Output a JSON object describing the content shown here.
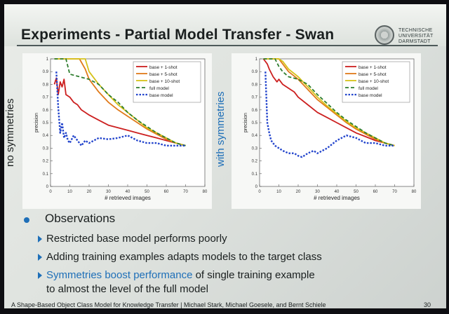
{
  "slide": {
    "title": "Experiments - Partial Model Transfer - Swan",
    "logo_lines": [
      "TECHNISCHE",
      "UNIVERSITÄT",
      "DARMSTADT"
    ],
    "footer": "A Shape-Based Object Class Model for Knowledge Transfer | Michael Stark, Michael Goesele, and Bernt Schiele",
    "page_number": "30"
  },
  "plots": {
    "left_label": "no symmetries",
    "right_label": "with symmetries"
  },
  "bullets": {
    "heading": "Observations",
    "items": [
      {
        "text": "Restricted base model performs poorly"
      },
      {
        "text": "Adding training examples adapts models to the target class"
      },
      {
        "highlight": "Symmetries boost performance",
        "text": " of single training example",
        "text2": "to almost the level of the full model"
      }
    ]
  },
  "chart_data": [
    {
      "type": "line",
      "title": "",
      "xlabel": "# retrieved images",
      "ylabel": "precision",
      "xlim": [
        0,
        80
      ],
      "ylim": [
        0,
        1
      ],
      "xticks": [
        0,
        10,
        20,
        30,
        40,
        50,
        60,
        70,
        80
      ],
      "yticks": [
        0,
        0.1,
        0.2,
        0.3,
        0.4,
        0.5,
        0.6,
        0.7,
        0.8,
        0.9,
        1
      ],
      "legend_position": "top-right",
      "series": [
        {
          "name": "base + 1-shot",
          "color": "#cc1f1f",
          "dash": "solid",
          "x": [
            2,
            3,
            4,
            5,
            6,
            7,
            8,
            10,
            12,
            14,
            16,
            18,
            20,
            25,
            30,
            35,
            40,
            45,
            50,
            55,
            60,
            65,
            70
          ],
          "y": [
            0.8,
            0.85,
            0.72,
            0.82,
            0.78,
            0.84,
            0.72,
            0.7,
            0.66,
            0.64,
            0.6,
            0.58,
            0.56,
            0.52,
            0.48,
            0.46,
            0.44,
            0.42,
            0.4,
            0.38,
            0.36,
            0.34,
            0.32
          ]
        },
        {
          "name": "base + 5-shot",
          "color": "#e07a1a",
          "dash": "solid",
          "x": [
            2,
            5,
            10,
            15,
            18,
            20,
            25,
            30,
            35,
            40,
            45,
            50,
            55,
            60,
            65,
            70
          ],
          "y": [
            1,
            1,
            1,
            1,
            0.92,
            0.84,
            0.74,
            0.66,
            0.6,
            0.55,
            0.5,
            0.45,
            0.41,
            0.37,
            0.34,
            0.32
          ]
        },
        {
          "name": "base + 10-shot",
          "color": "#d6c21a",
          "dash": "solid",
          "x": [
            2,
            5,
            10,
            15,
            18,
            20,
            25,
            30,
            35,
            40,
            45,
            50,
            55,
            60,
            65,
            70
          ],
          "y": [
            1,
            1,
            1,
            1,
            1,
            0.9,
            0.8,
            0.72,
            0.64,
            0.58,
            0.52,
            0.46,
            0.42,
            0.38,
            0.34,
            0.32
          ]
        },
        {
          "name": "full model",
          "color": "#2e7d2e",
          "dash": "dashed",
          "x": [
            2,
            5,
            8,
            10,
            15,
            20,
            25,
            30,
            35,
            40,
            45,
            50,
            55,
            60,
            65,
            70
          ],
          "y": [
            1,
            1,
            1,
            0.88,
            0.86,
            0.84,
            0.8,
            0.72,
            0.66,
            0.58,
            0.52,
            0.47,
            0.42,
            0.38,
            0.34,
            0.32
          ]
        },
        {
          "name": "base model",
          "color": "#2244cc",
          "dash": "dotted",
          "x": [
            3,
            4,
            5,
            6,
            7,
            8,
            9,
            10,
            12,
            14,
            16,
            18,
            20,
            25,
            30,
            35,
            40,
            45,
            50,
            55,
            60,
            65,
            70
          ],
          "y": [
            0.9,
            0.62,
            0.42,
            0.5,
            0.38,
            0.42,
            0.36,
            0.34,
            0.4,
            0.36,
            0.32,
            0.36,
            0.34,
            0.38,
            0.37,
            0.38,
            0.4,
            0.36,
            0.34,
            0.34,
            0.32,
            0.32,
            0.32
          ]
        }
      ]
    },
    {
      "type": "line",
      "title": "",
      "xlabel": "# retrieved images",
      "ylabel": "precision",
      "xlim": [
        0,
        80
      ],
      "ylim": [
        0,
        1
      ],
      "xticks": [
        0,
        10,
        20,
        30,
        40,
        50,
        60,
        70,
        80
      ],
      "yticks": [
        0,
        0.1,
        0.2,
        0.3,
        0.4,
        0.5,
        0.6,
        0.7,
        0.8,
        0.9,
        1
      ],
      "legend_position": "top-right",
      "series": [
        {
          "name": "base + 1-shot",
          "color": "#cc1f1f",
          "dash": "solid",
          "x": [
            2,
            4,
            5,
            7,
            9,
            10,
            12,
            15,
            18,
            20,
            25,
            30,
            35,
            40,
            45,
            50,
            55,
            60,
            65,
            70
          ],
          "y": [
            1,
            0.96,
            0.92,
            0.86,
            0.82,
            0.84,
            0.8,
            0.77,
            0.74,
            0.7,
            0.64,
            0.58,
            0.54,
            0.5,
            0.46,
            0.42,
            0.39,
            0.36,
            0.34,
            0.32
          ]
        },
        {
          "name": "base + 5-shot",
          "color": "#e07a1a",
          "dash": "solid",
          "x": [
            2,
            5,
            10,
            12,
            15,
            20,
            25,
            30,
            35,
            40,
            45,
            50,
            55,
            60,
            65,
            70
          ],
          "y": [
            1,
            1,
            1,
            0.96,
            0.9,
            0.84,
            0.76,
            0.68,
            0.62,
            0.56,
            0.5,
            0.45,
            0.41,
            0.37,
            0.34,
            0.32
          ]
        },
        {
          "name": "base + 10-shot",
          "color": "#d6c21a",
          "dash": "solid",
          "x": [
            2,
            5,
            10,
            12,
            15,
            20,
            25,
            30,
            35,
            40,
            45,
            50,
            55,
            60,
            65,
            70
          ],
          "y": [
            1,
            1,
            1,
            0.98,
            0.92,
            0.86,
            0.78,
            0.7,
            0.63,
            0.57,
            0.51,
            0.46,
            0.42,
            0.38,
            0.34,
            0.32
          ]
        },
        {
          "name": "full model",
          "color": "#2e7d2e",
          "dash": "dashed",
          "x": [
            2,
            5,
            8,
            10,
            12,
            15,
            20,
            25,
            30,
            35,
            40,
            45,
            50,
            55,
            60,
            65,
            70
          ],
          "y": [
            1,
            1,
            1,
            0.94,
            0.9,
            0.86,
            0.84,
            0.8,
            0.72,
            0.65,
            0.58,
            0.52,
            0.47,
            0.42,
            0.38,
            0.34,
            0.32
          ]
        },
        {
          "name": "base model",
          "color": "#2244cc",
          "dash": "dotted",
          "x": [
            3,
            4,
            5,
            6,
            8,
            10,
            12,
            15,
            18,
            20,
            22,
            25,
            28,
            30,
            35,
            40,
            45,
            50,
            55,
            60,
            65,
            70
          ],
          "y": [
            0.9,
            0.5,
            0.42,
            0.36,
            0.32,
            0.3,
            0.28,
            0.26,
            0.26,
            0.24,
            0.23,
            0.26,
            0.28,
            0.26,
            0.3,
            0.36,
            0.4,
            0.38,
            0.34,
            0.34,
            0.32,
            0.32
          ]
        }
      ]
    }
  ]
}
